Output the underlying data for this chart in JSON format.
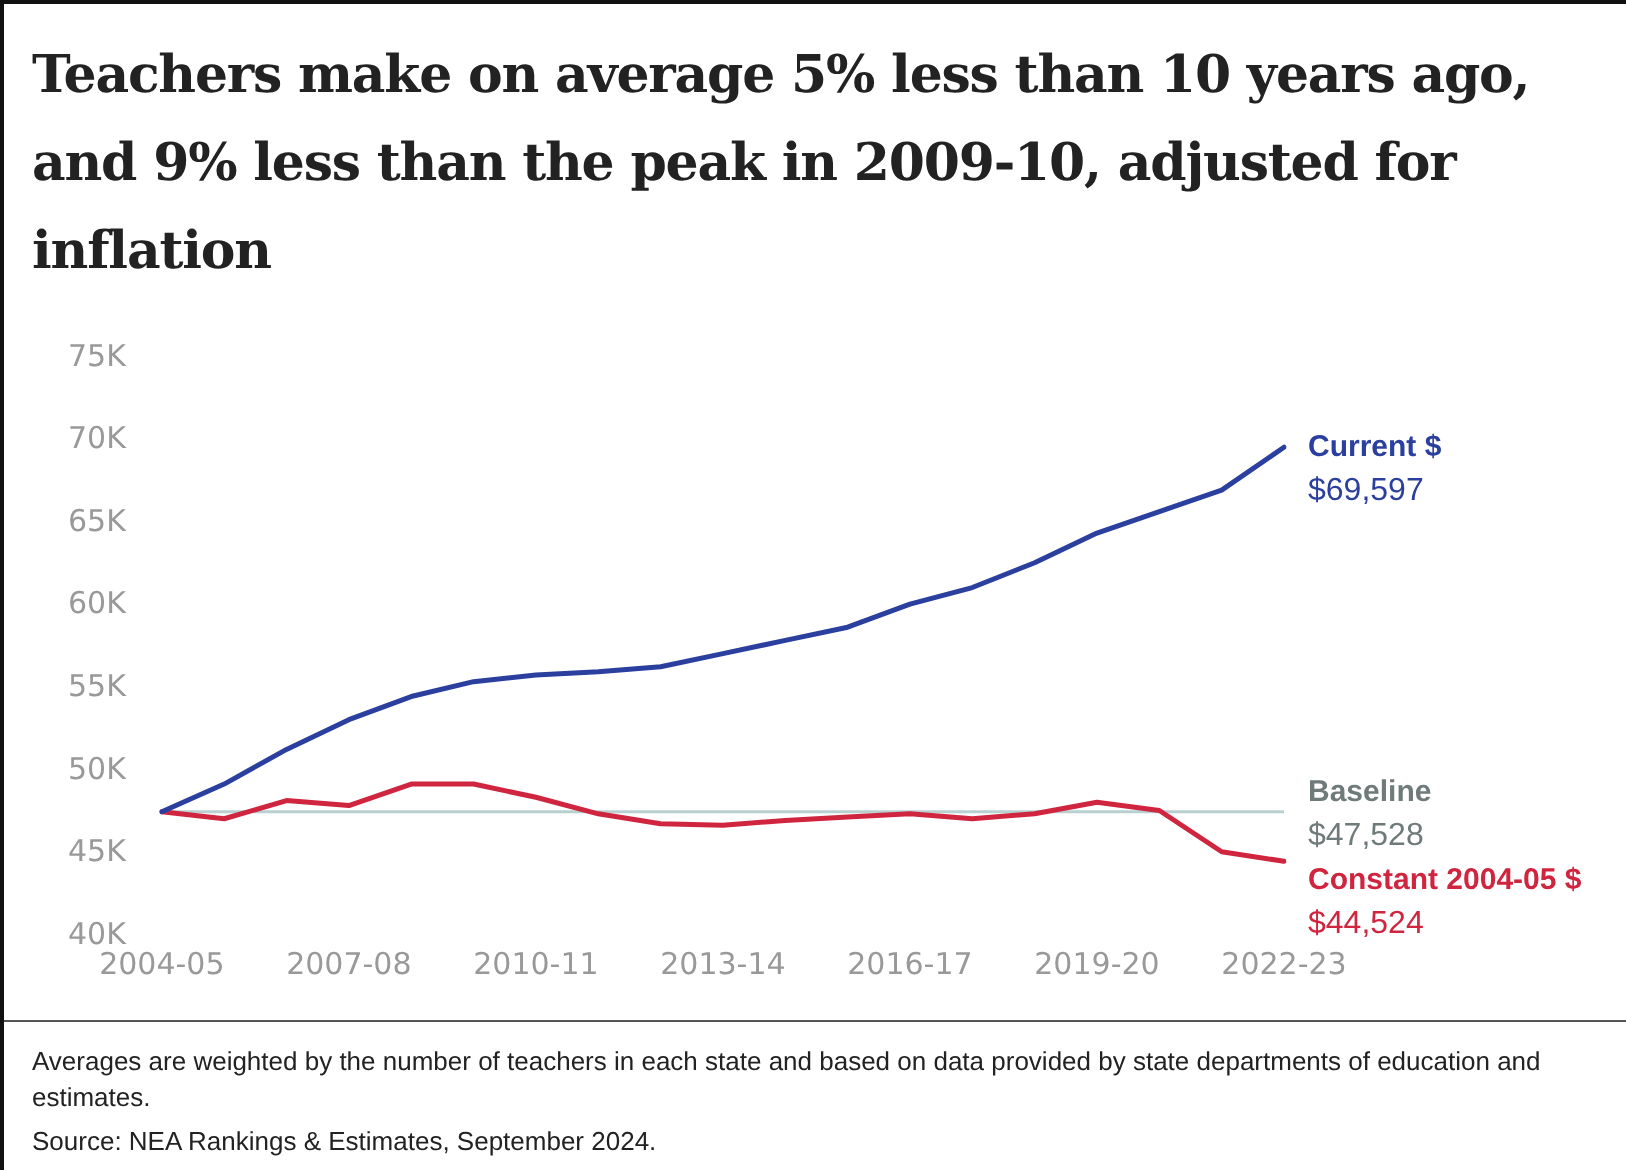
{
  "chart_data": {
    "type": "line",
    "title": "Teachers make on average 5% less than 10 years ago, and 9% less than the peak in 2009-10, adjusted for inflation",
    "categories": [
      "2004-05",
      null,
      null,
      "2007-08",
      null,
      null,
      "2010-11",
      null,
      null,
      "2013-14",
      null,
      null,
      "2016-17",
      null,
      null,
      "2019-20",
      null,
      null,
      "2022-23"
    ],
    "series": [
      {
        "name": "Current $",
        "color": "#2b3f9e",
        "values": [
          47528,
          49200,
          51300,
          53100,
          54500,
          55400,
          55800,
          56000,
          56300,
          57100,
          57900,
          58700,
          60100,
          61100,
          62600,
          64400,
          65700,
          67000,
          69597
        ]
      },
      {
        "name": "Constant 2004-05 $",
        "color": "#d0253f",
        "values": [
          47528,
          47100,
          48200,
          47900,
          49200,
          49200,
          48400,
          47400,
          46800,
          46700,
          47000,
          47200,
          47400,
          47100,
          47400,
          48100,
          47600,
          45100,
          44524
        ]
      }
    ],
    "ylim": [
      40000,
      75000
    ],
    "yticks": [
      {
        "value": 40000,
        "label": "40K"
      },
      {
        "value": 45000,
        "label": "45K"
      },
      {
        "value": 50000,
        "label": "50K"
      },
      {
        "value": 55000,
        "label": "55K"
      },
      {
        "value": 60000,
        "label": "60K"
      },
      {
        "value": 65000,
        "label": "65K"
      },
      {
        "value": 70000,
        "label": "70K"
      },
      {
        "value": 75000,
        "label": "75K"
      }
    ],
    "ref_lines": [
      {
        "axis": "y",
        "value": 47528,
        "label": "Baseline",
        "color": "#b9d0d0"
      }
    ],
    "annotations": [
      {
        "text": "$69,597",
        "x": "2022-23",
        "y": 69597
      },
      {
        "text": "$47,528",
        "x": "2022-23",
        "y": 47528
      },
      {
        "text": "$44,524",
        "x": "2022-23",
        "y": 44524
      },
      "Averages are weighted by the number of teachers in each state and based on data provided by state departments of education and estimates.",
      "Source: NEA Rankings & Estimates, September 2024."
    ],
    "grid": false,
    "legend": false,
    "marker": "none",
    "line_style": "solid"
  }
}
